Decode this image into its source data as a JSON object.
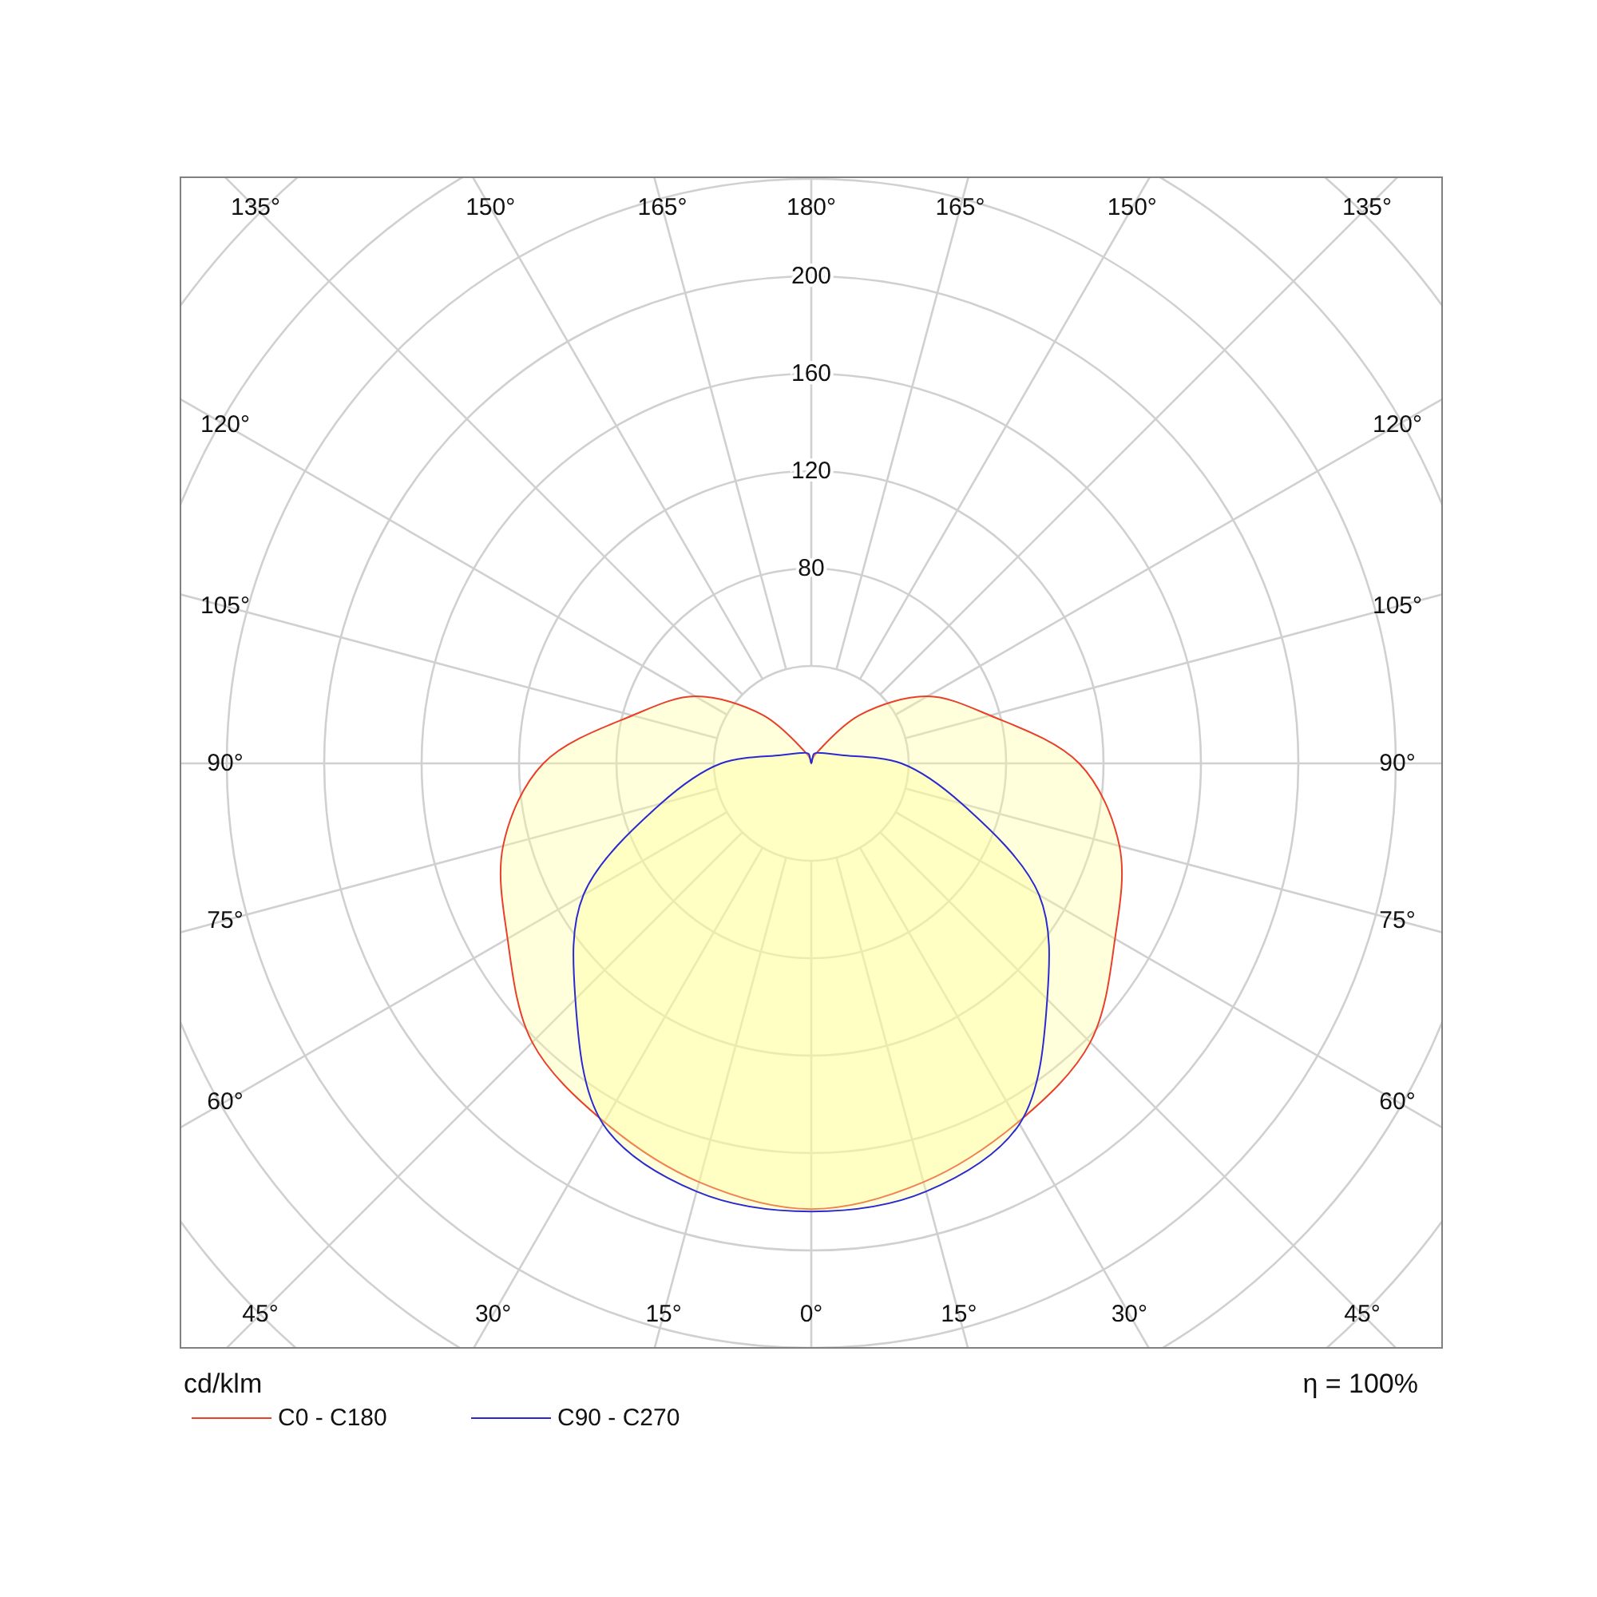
{
  "chart_data": {
    "type": "radar",
    "ylabel": "cd/klm",
    "annotations": [
      "η = 100%"
    ],
    "categories": [
      "180°",
      "165°",
      "150°",
      "135°",
      "120°",
      "105°",
      "90°",
      "75°",
      "60°",
      "45°",
      "30°",
      "15°",
      "0°",
      "15°",
      "30°",
      "45°",
      "60°",
      "75°",
      "90°",
      "105°",
      "120°",
      "135°",
      "150°",
      "165°"
    ],
    "series": [
      {
        "name": "C0 - C180",
        "color": "#e8402a",
        "values": [
          0,
          2,
          6,
          28,
          55,
          76,
          110,
          131,
          144,
          162,
          170,
          178,
          183,
          178,
          170,
          162,
          144,
          131,
          110,
          76,
          55,
          28,
          6,
          2
        ]
      },
      {
        "name": "C90 - C270",
        "color": "#2a2ad0",
        "values": [
          0,
          4,
          5,
          6,
          8,
          13,
          37,
          64,
          108,
          137,
          171,
          182,
          184,
          182,
          171,
          137,
          108,
          64,
          37,
          13,
          8,
          6,
          5,
          4
        ]
      }
    ],
    "ylim": [
      0,
      320
    ],
    "yticks": [
      80,
      120,
      160,
      200
    ],
    "grid": true,
    "legend": "bottom"
  }
}
